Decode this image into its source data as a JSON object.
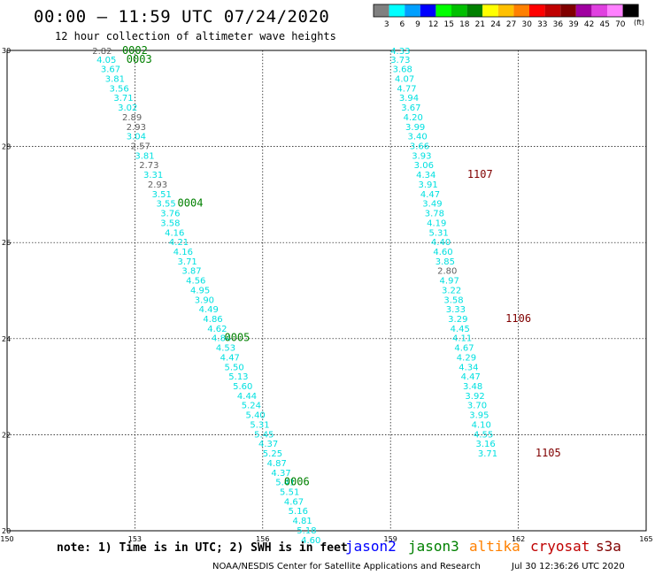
{
  "header": {
    "title": "00:00 – 11:59 UTC 07/24/2020",
    "subtitle": "12 hour collection of altimeter wave heights"
  },
  "legend": {
    "unit": "(ft)",
    "bins": [
      {
        "label": "3",
        "color": "#808080"
      },
      {
        "label": "6",
        "color": "#00ffff"
      },
      {
        "label": "9",
        "color": "#00a0ff"
      },
      {
        "label": "12",
        "color": "#0000ff"
      },
      {
        "label": "15",
        "color": "#00ff00"
      },
      {
        "label": "18",
        "color": "#00c000"
      },
      {
        "label": "21",
        "color": "#008000"
      },
      {
        "label": "24",
        "color": "#ffff00"
      },
      {
        "label": "27",
        "color": "#ffc000"
      },
      {
        "label": "30",
        "color": "#ff8000"
      },
      {
        "label": "33",
        "color": "#ff0000"
      },
      {
        "label": "36",
        "color": "#c00000"
      },
      {
        "label": "39",
        "color": "#800000"
      },
      {
        "label": "42",
        "color": "#a000a0"
      },
      {
        "label": "45",
        "color": "#e040e0"
      },
      {
        "label": "70",
        "color": "#ff80ff"
      },
      {
        "label": "",
        "color": "#000000"
      }
    ]
  },
  "map": {
    "lon_ticks": [
      "150",
      "153",
      "156",
      "159",
      "162",
      "165"
    ],
    "lat_ticks": [
      "30",
      "28",
      "26",
      "24",
      "22",
      "20"
    ]
  },
  "tracks": [
    {
      "name": "track-west",
      "points": [
        {
          "lon": 152.0,
          "lat": 30.0,
          "v": "2.82",
          "c": "gray"
        },
        {
          "lon": 152.1,
          "lat": 29.82,
          "v": "4.05",
          "c": "cyan"
        },
        {
          "lon": 152.2,
          "lat": 29.62,
          "v": "3.67",
          "c": "cyan"
        },
        {
          "lon": 152.3,
          "lat": 29.42,
          "v": "3.81",
          "c": "cyan"
        },
        {
          "lon": 152.4,
          "lat": 29.22,
          "v": "3.56",
          "c": "cyan"
        },
        {
          "lon": 152.5,
          "lat": 29.02,
          "v": "3.71",
          "c": "cyan"
        },
        {
          "lon": 152.6,
          "lat": 28.82,
          "v": "3.02",
          "c": "cyan"
        },
        {
          "lon": 152.7,
          "lat": 28.62,
          "v": "2.89",
          "c": "gray"
        },
        {
          "lon": 152.8,
          "lat": 28.42,
          "v": "2.93",
          "c": "gray"
        },
        {
          "lon": 152.8,
          "lat": 28.22,
          "v": "3.04",
          "c": "cyan"
        },
        {
          "lon": 152.9,
          "lat": 28.02,
          "v": "2.57",
          "c": "gray"
        },
        {
          "lon": 153.0,
          "lat": 27.82,
          "v": "3.81",
          "c": "cyan"
        },
        {
          "lon": 153.1,
          "lat": 27.62,
          "v": "2.73",
          "c": "gray"
        },
        {
          "lon": 153.2,
          "lat": 27.42,
          "v": "3.31",
          "c": "cyan"
        },
        {
          "lon": 153.3,
          "lat": 27.22,
          "v": "2.93",
          "c": "gray"
        },
        {
          "lon": 153.4,
          "lat": 27.02,
          "v": "3.51",
          "c": "cyan"
        },
        {
          "lon": 153.5,
          "lat": 26.82,
          "v": "3.55",
          "c": "cyan"
        },
        {
          "lon": 153.6,
          "lat": 26.62,
          "v": "3.76",
          "c": "cyan"
        },
        {
          "lon": 153.6,
          "lat": 26.42,
          "v": "3.58",
          "c": "cyan"
        },
        {
          "lon": 153.7,
          "lat": 26.22,
          "v": "4.16",
          "c": "cyan"
        },
        {
          "lon": 153.8,
          "lat": 26.02,
          "v": "4.21",
          "c": "cyan"
        },
        {
          "lon": 153.9,
          "lat": 25.82,
          "v": "4.16",
          "c": "cyan"
        },
        {
          "lon": 154.0,
          "lat": 25.62,
          "v": "3.71",
          "c": "cyan"
        },
        {
          "lon": 154.1,
          "lat": 25.42,
          "v": "3.87",
          "c": "cyan"
        },
        {
          "lon": 154.2,
          "lat": 25.22,
          "v": "4.56",
          "c": "cyan"
        },
        {
          "lon": 154.3,
          "lat": 25.02,
          "v": "4.95",
          "c": "cyan"
        },
        {
          "lon": 154.4,
          "lat": 24.82,
          "v": "3.90",
          "c": "cyan"
        },
        {
          "lon": 154.5,
          "lat": 24.62,
          "v": "4.49",
          "c": "cyan"
        },
        {
          "lon": 154.6,
          "lat": 24.42,
          "v": "4.86",
          "c": "cyan"
        },
        {
          "lon": 154.7,
          "lat": 24.22,
          "v": "4.62",
          "c": "cyan"
        },
        {
          "lon": 154.8,
          "lat": 24.02,
          "v": "4.84",
          "c": "cyan"
        },
        {
          "lon": 154.9,
          "lat": 23.82,
          "v": "4.53",
          "c": "cyan"
        },
        {
          "lon": 155.0,
          "lat": 23.62,
          "v": "4.47",
          "c": "cyan"
        },
        {
          "lon": 155.1,
          "lat": 23.42,
          "v": "5.50",
          "c": "cyan"
        },
        {
          "lon": 155.2,
          "lat": 23.22,
          "v": "5.13",
          "c": "cyan"
        },
        {
          "lon": 155.3,
          "lat": 23.02,
          "v": "5.60",
          "c": "cyan"
        },
        {
          "lon": 155.4,
          "lat": 22.82,
          "v": "4.44",
          "c": "cyan"
        },
        {
          "lon": 155.5,
          "lat": 22.62,
          "v": "5.24",
          "c": "cyan"
        },
        {
          "lon": 155.6,
          "lat": 22.42,
          "v": "5.40",
          "c": "cyan"
        },
        {
          "lon": 155.7,
          "lat": 22.22,
          "v": "5.31",
          "c": "cyan"
        },
        {
          "lon": 155.8,
          "lat": 22.02,
          "v": "5.45",
          "c": "cyan"
        },
        {
          "lon": 155.9,
          "lat": 21.82,
          "v": "4.37",
          "c": "cyan"
        },
        {
          "lon": 156.0,
          "lat": 21.62,
          "v": "5.25",
          "c": "cyan"
        },
        {
          "lon": 156.1,
          "lat": 21.42,
          "v": "4.87",
          "c": "cyan"
        },
        {
          "lon": 156.2,
          "lat": 21.22,
          "v": "4.37",
          "c": "cyan"
        },
        {
          "lon": 156.3,
          "lat": 21.02,
          "v": "5.41",
          "c": "cyan"
        },
        {
          "lon": 156.4,
          "lat": 20.82,
          "v": "5.51",
          "c": "cyan"
        },
        {
          "lon": 156.5,
          "lat": 20.62,
          "v": "4.67",
          "c": "cyan"
        },
        {
          "lon": 156.6,
          "lat": 20.42,
          "v": "5.16",
          "c": "cyan"
        },
        {
          "lon": 156.7,
          "lat": 20.22,
          "v": "4.81",
          "c": "cyan"
        },
        {
          "lon": 156.8,
          "lat": 20.02,
          "v": "5.18",
          "c": "cyan"
        },
        {
          "lon": 156.9,
          "lat": 19.82,
          "v": "4.60",
          "c": "cyan"
        }
      ],
      "tags": [
        {
          "lon": 152.7,
          "lat": 30.0,
          "text": "0002",
          "c": "green"
        },
        {
          "lon": 152.8,
          "lat": 29.82,
          "text": "0003",
          "c": "green"
        },
        {
          "lon": 154.0,
          "lat": 26.82,
          "text": "0004",
          "c": "green"
        },
        {
          "lon": 155.1,
          "lat": 24.02,
          "text": "0005",
          "c": "green"
        },
        {
          "lon": 156.5,
          "lat": 21.02,
          "text": "0006",
          "c": "green"
        }
      ]
    },
    {
      "name": "track-east",
      "points": [
        {
          "lon": 159.0,
          "lat": 30.0,
          "v": "4.33",
          "c": "cyan"
        },
        {
          "lon": 159.0,
          "lat": 29.82,
          "v": "3.73",
          "c": "cyan"
        },
        {
          "lon": 159.05,
          "lat": 29.62,
          "v": "3.68",
          "c": "cyan"
        },
        {
          "lon": 159.1,
          "lat": 29.42,
          "v": "4.07",
          "c": "cyan"
        },
        {
          "lon": 159.15,
          "lat": 29.22,
          "v": "4.77",
          "c": "cyan"
        },
        {
          "lon": 159.2,
          "lat": 29.02,
          "v": "3.94",
          "c": "cyan"
        },
        {
          "lon": 159.25,
          "lat": 28.82,
          "v": "3.67",
          "c": "cyan"
        },
        {
          "lon": 159.3,
          "lat": 28.62,
          "v": "4.20",
          "c": "cyan"
        },
        {
          "lon": 159.35,
          "lat": 28.42,
          "v": "3.99",
          "c": "cyan"
        },
        {
          "lon": 159.4,
          "lat": 28.22,
          "v": "3.40",
          "c": "cyan"
        },
        {
          "lon": 159.45,
          "lat": 28.02,
          "v": "3.66",
          "c": "cyan"
        },
        {
          "lon": 159.5,
          "lat": 27.82,
          "v": "3.93",
          "c": "cyan"
        },
        {
          "lon": 159.55,
          "lat": 27.62,
          "v": "3.06",
          "c": "cyan"
        },
        {
          "lon": 159.6,
          "lat": 27.42,
          "v": "4.34",
          "c": "cyan"
        },
        {
          "lon": 159.65,
          "lat": 27.22,
          "v": "3.91",
          "c": "cyan"
        },
        {
          "lon": 159.7,
          "lat": 27.02,
          "v": "4.47",
          "c": "cyan"
        },
        {
          "lon": 159.75,
          "lat": 26.82,
          "v": "3.49",
          "c": "cyan"
        },
        {
          "lon": 159.8,
          "lat": 26.62,
          "v": "3.78",
          "c": "cyan"
        },
        {
          "lon": 159.85,
          "lat": 26.42,
          "v": "4.19",
          "c": "cyan"
        },
        {
          "lon": 159.9,
          "lat": 26.22,
          "v": "5.31",
          "c": "cyan"
        },
        {
          "lon": 159.95,
          "lat": 26.02,
          "v": "4.40",
          "c": "cyan"
        },
        {
          "lon": 160.0,
          "lat": 25.82,
          "v": "4.60",
          "c": "cyan"
        },
        {
          "lon": 160.05,
          "lat": 25.62,
          "v": "3.85",
          "c": "cyan"
        },
        {
          "lon": 160.1,
          "lat": 25.42,
          "v": "2.80",
          "c": "gray"
        },
        {
          "lon": 160.15,
          "lat": 25.22,
          "v": "4.97",
          "c": "cyan"
        },
        {
          "lon": 160.2,
          "lat": 25.02,
          "v": "3.22",
          "c": "cyan"
        },
        {
          "lon": 160.25,
          "lat": 24.82,
          "v": "3.58",
          "c": "cyan"
        },
        {
          "lon": 160.3,
          "lat": 24.62,
          "v": "3.33",
          "c": "cyan"
        },
        {
          "lon": 160.35,
          "lat": 24.42,
          "v": "3.29",
          "c": "cyan"
        },
        {
          "lon": 160.4,
          "lat": 24.22,
          "v": "4.45",
          "c": "cyan"
        },
        {
          "lon": 160.45,
          "lat": 24.02,
          "v": "4.11",
          "c": "cyan"
        },
        {
          "lon": 160.5,
          "lat": 23.82,
          "v": "4.67",
          "c": "cyan"
        },
        {
          "lon": 160.55,
          "lat": 23.62,
          "v": "4.29",
          "c": "cyan"
        },
        {
          "lon": 160.6,
          "lat": 23.42,
          "v": "4.34",
          "c": "cyan"
        },
        {
          "lon": 160.65,
          "lat": 23.22,
          "v": "4.47",
          "c": "cyan"
        },
        {
          "lon": 160.7,
          "lat": 23.02,
          "v": "3.48",
          "c": "cyan"
        },
        {
          "lon": 160.75,
          "lat": 22.82,
          "v": "3.92",
          "c": "cyan"
        },
        {
          "lon": 160.8,
          "lat": 22.62,
          "v": "3.70",
          "c": "cyan"
        },
        {
          "lon": 160.85,
          "lat": 22.42,
          "v": "3.95",
          "c": "cyan"
        },
        {
          "lon": 160.9,
          "lat": 22.22,
          "v": "4.10",
          "c": "cyan"
        },
        {
          "lon": 160.95,
          "lat": 22.02,
          "v": "4.55",
          "c": "cyan"
        },
        {
          "lon": 161.0,
          "lat": 21.82,
          "v": "3.16",
          "c": "cyan"
        },
        {
          "lon": 161.05,
          "lat": 21.62,
          "v": "3.71",
          "c": "cyan"
        }
      ],
      "tags": [
        {
          "lon": 160.8,
          "lat": 27.42,
          "text": "1107",
          "c": "darkred"
        },
        {
          "lon": 161.7,
          "lat": 24.42,
          "text": "1106",
          "c": "darkred"
        },
        {
          "lon": 162.4,
          "lat": 21.62,
          "text": "1105",
          "c": "darkred"
        }
      ]
    }
  ],
  "footer": {
    "note": "note: 1) Time is in UTC; 2) SWH is in feet",
    "sats": [
      {
        "label": "jason2",
        "color": "#0000ff"
      },
      {
        "label": "jason3",
        "color": "#008000"
      },
      {
        "label": "altika",
        "color": "#ff8000"
      },
      {
        "label": "cryosat",
        "color": "#c00000"
      },
      {
        "label": "s3a",
        "color": "#800000"
      }
    ],
    "credit": "NOAA/NESDIS Center for Satellite Applications and Research",
    "timestamp": "Jul 30 12:36:26 UTC 2020"
  }
}
